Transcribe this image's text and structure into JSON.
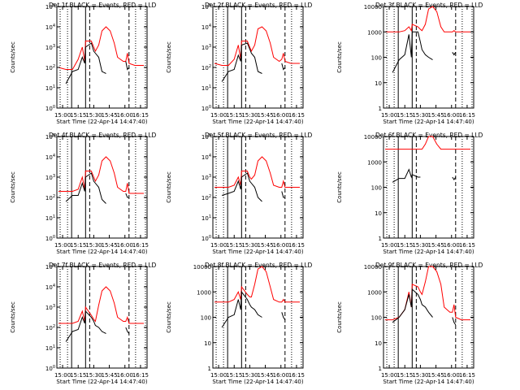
{
  "colors": {
    "black_series": "#000000",
    "red_series": "#ff0000",
    "axes": "#000000",
    "background": "#ffffff"
  },
  "chart_data": [
    {
      "type": "line",
      "title": "Det 1f BLACK = Events, RED = LLD",
      "xlabel": "Start Time (22-Apr-14 14:47:40)",
      "ylabel": "Counts/sec",
      "yscale": "log",
      "ylim_exp": [
        0,
        5
      ],
      "ytick_labels": [
        "10^0",
        "10^1",
        "10^2",
        "10^3",
        "10^4",
        "10^5"
      ],
      "x_tick_labels": [
        "15:00",
        "15:15",
        "15:30",
        "15:45",
        "16:00",
        "16:15"
      ],
      "x": [
        2,
        11,
        19,
        26,
        31,
        34,
        35,
        42,
        45,
        47,
        51,
        55,
        60,
        65,
        70,
        74,
        81,
        84,
        86,
        88,
        95,
        106
      ],
      "series": [
        {
          "name": "BLACK = Events",
          "color": "#000000",
          "log_values": [
            null,
            1.2,
            1.8,
            1.9,
            2.5,
            2.2,
            3.0,
            3.2,
            2.8,
            2.7,
            2.5,
            1.8,
            1.7,
            null,
            null,
            null,
            null,
            2.3,
            1.9,
            2.0,
            null,
            null
          ]
        },
        {
          "name": "RED = LLD",
          "color": "#ff0000",
          "log_values": [
            2.0,
            1.9,
            1.9,
            2.4,
            3.0,
            2.3,
            3.3,
            3.3,
            3.0,
            2.8,
            3.1,
            3.8,
            4.0,
            3.8,
            3.2,
            2.5,
            2.3,
            2.3,
            2.7,
            2.2,
            2.1,
            2.1
          ]
        }
      ]
    },
    {
      "type": "line",
      "title": "Det 2f BLACK = Events, RED = LLD",
      "xlabel": "Start Time (22-Apr-14 14:47:40)",
      "ylabel": "Counts/sec",
      "yscale": "log",
      "ylim_exp": [
        0,
        5
      ],
      "ytick_labels": [
        "10^0",
        "10^1",
        "10^2",
        "10^3",
        "10^4",
        "10^5"
      ],
      "x_tick_labels": [
        "15:00",
        "15:15",
        "15:30",
        "15:45",
        "16:00",
        "16:15"
      ],
      "x": [
        2,
        11,
        19,
        26,
        31,
        34,
        35,
        42,
        45,
        47,
        51,
        55,
        60,
        65,
        70,
        74,
        81,
        84,
        86,
        88,
        95,
        106
      ],
      "series": [
        {
          "name": "BLACK = Events",
          "color": "#000000",
          "log_values": [
            null,
            1.3,
            1.8,
            1.9,
            2.6,
            2.3,
            3.1,
            3.2,
            2.9,
            2.7,
            2.5,
            1.8,
            1.7,
            null,
            null,
            null,
            null,
            2.2,
            1.9,
            2.0,
            null,
            null
          ]
        },
        {
          "name": "RED = LLD",
          "color": "#ff0000",
          "log_values": [
            2.2,
            2.1,
            2.1,
            2.4,
            3.1,
            2.4,
            3.3,
            3.3,
            3.0,
            2.8,
            3.1,
            3.9,
            4.0,
            3.8,
            3.2,
            2.5,
            2.3,
            2.4,
            2.7,
            2.3,
            2.2,
            2.2
          ]
        }
      ]
    },
    {
      "type": "line",
      "title": "Det 3f BLACK = Events, RED = LLD",
      "xlabel": "Start Time (22-Apr-14 14:47:40)",
      "ylabel": "Counts/sec",
      "yscale": "log",
      "ylim_exp": [
        0,
        4
      ],
      "ytick_labels": [
        "1",
        "10",
        "100",
        "1000",
        "10000"
      ],
      "x_tick_labels": [
        "15:00",
        "15:15",
        "15:30",
        "15:45",
        "16:00",
        "16:15"
      ],
      "x": [
        2,
        11,
        19,
        26,
        31,
        34,
        35,
        42,
        45,
        47,
        51,
        55,
        60,
        65,
        70,
        74,
        81,
        84,
        86,
        88,
        95,
        106
      ],
      "series": [
        {
          "name": "BLACK = Events",
          "color": "#000000",
          "log_values": [
            null,
            1.4,
            1.9,
            2.1,
            2.9,
            2.0,
            3.0,
            3.0,
            2.6,
            2.3,
            2.1,
            2.0,
            1.9,
            null,
            null,
            null,
            null,
            2.2,
            2.1,
            2.2,
            null,
            null
          ]
        },
        {
          "name": "RED = LLD",
          "color": "#ff0000",
          "log_values": [
            3.0,
            3.0,
            3.0,
            3.05,
            3.2,
            3.05,
            3.3,
            3.2,
            3.1,
            3.05,
            3.3,
            3.9,
            4.0,
            3.8,
            3.2,
            3.0,
            3.0,
            3.0,
            3.05,
            3.0,
            3.0,
            3.0
          ]
        }
      ]
    },
    {
      "type": "line",
      "title": "Det 4f BLACK = Events, RED = LLD",
      "xlabel": "Start Time (22-Apr-14 14:47:40)",
      "ylabel": "Counts/sec",
      "yscale": "log",
      "ylim_exp": [
        0,
        5
      ],
      "ytick_labels": [
        "10^0",
        "10^1",
        "10^2",
        "10^3",
        "10^4",
        "10^5"
      ],
      "x_tick_labels": [
        "15:00",
        "15:15",
        "15:30",
        "15:45",
        "16:00",
        "16:15"
      ],
      "x": [
        2,
        11,
        19,
        26,
        31,
        34,
        35,
        42,
        45,
        47,
        51,
        55,
        60,
        65,
        70,
        74,
        81,
        84,
        86,
        88,
        95,
        106
      ],
      "series": [
        {
          "name": "BLACK = Events",
          "color": "#000000",
          "log_values": [
            null,
            1.8,
            2.1,
            2.1,
            2.7,
            2.3,
            3.0,
            3.2,
            2.8,
            2.7,
            2.5,
            1.9,
            1.7,
            null,
            null,
            null,
            null,
            2.2,
            2.0,
            2.0,
            null,
            null
          ]
        },
        {
          "name": "RED = LLD",
          "color": "#ff0000",
          "log_values": [
            2.3,
            2.3,
            2.3,
            2.4,
            3.0,
            2.4,
            3.3,
            3.3,
            3.0,
            2.8,
            3.1,
            3.8,
            4.0,
            3.8,
            3.2,
            2.5,
            2.3,
            2.3,
            2.7,
            2.2,
            2.2,
            2.2
          ]
        }
      ]
    },
    {
      "type": "line",
      "title": "Det 5f BLACK = Events, RED = LLD",
      "xlabel": "Start Time (22-Apr-14 14:47:40)",
      "ylabel": "Counts/sec",
      "yscale": "log",
      "ylim_exp": [
        0,
        5
      ],
      "ytick_labels": [
        "10^0",
        "10^1",
        "10^2",
        "10^3",
        "10^4",
        "10^5"
      ],
      "x_tick_labels": [
        "15:00",
        "15:15",
        "15:30",
        "15:45",
        "16:00",
        "16:15"
      ],
      "x": [
        2,
        11,
        19,
        26,
        31,
        34,
        35,
        42,
        45,
        47,
        51,
        55,
        60,
        65,
        70,
        74,
        81,
        84,
        86,
        88,
        95,
        106
      ],
      "series": [
        {
          "name": "BLACK = Events",
          "color": "#000000",
          "log_values": [
            null,
            2.1,
            2.2,
            2.3,
            2.8,
            2.4,
            3.0,
            3.2,
            2.8,
            2.7,
            2.5,
            2.0,
            1.8,
            null,
            null,
            null,
            null,
            2.3,
            2.0,
            2.0,
            null,
            null
          ]
        },
        {
          "name": "RED = LLD",
          "color": "#ff0000",
          "log_values": [
            2.5,
            2.5,
            2.5,
            2.6,
            3.0,
            2.6,
            3.3,
            3.3,
            3.0,
            2.9,
            3.1,
            3.8,
            4.0,
            3.8,
            3.2,
            2.6,
            2.5,
            2.5,
            2.8,
            2.5,
            2.5,
            2.5
          ]
        }
      ]
    },
    {
      "type": "line",
      "title": "Det 6f BLACK = Events, RED = LLD",
      "xlabel": "Start Time (22-Apr-14 14:47:40)",
      "ylabel": "Counts/sec",
      "yscale": "log",
      "ylim_exp": [
        0,
        4
      ],
      "ytick_labels": [
        "1",
        "10",
        "100",
        "1000",
        "10000"
      ],
      "x_tick_labels": [
        "15:00",
        "15:15",
        "15:30",
        "15:45",
        "16:00",
        "16:15"
      ],
      "x": [
        2,
        11,
        19,
        26,
        31,
        34,
        35,
        42,
        45,
        47,
        51,
        55,
        60,
        65,
        70,
        74,
        81,
        84,
        86,
        88,
        95,
        106
      ],
      "series": [
        {
          "name": "BLACK = Events",
          "color": "#000000",
          "log_values": [
            null,
            2.2,
            2.35,
            2.35,
            2.7,
            2.4,
            2.5,
            2.4,
            2.4,
            null,
            null,
            null,
            null,
            null,
            null,
            null,
            null,
            2.4,
            2.3,
            2.4,
            null,
            null
          ]
        },
        {
          "name": "RED = LLD",
          "color": "#ff0000",
          "log_values": [
            3.5,
            3.5,
            3.5,
            3.5,
            3.5,
            3.5,
            3.5,
            3.5,
            3.5,
            3.5,
            3.7,
            4.0,
            4.0,
            3.7,
            3.5,
            3.5,
            3.5,
            3.5,
            3.5,
            3.5,
            3.5,
            3.5
          ]
        }
      ]
    },
    {
      "type": "line",
      "title": "Det 7f BLACK = Events, RED = LLD",
      "xlabel": "Start Time (22-Apr-14 14:47:40)",
      "ylabel": "Counts/sec",
      "yscale": "log",
      "ylim_exp": [
        0,
        5
      ],
      "ytick_labels": [
        "10^0",
        "10^1",
        "10^2",
        "10^3",
        "10^4",
        "10^5"
      ],
      "x_tick_labels": [
        "15:00",
        "15:15",
        "15:30",
        "15:45",
        "16:00",
        "16:15"
      ],
      "x": [
        2,
        11,
        19,
        26,
        31,
        34,
        35,
        42,
        45,
        47,
        51,
        55,
        60,
        65,
        70,
        74,
        81,
        84,
        86,
        88,
        95,
        106
      ],
      "series": [
        {
          "name": "BLACK = Events",
          "color": "#000000",
          "log_values": [
            null,
            1.3,
            1.8,
            1.9,
            2.5,
            2.2,
            2.8,
            2.5,
            2.3,
            2.1,
            2.0,
            1.8,
            1.7,
            null,
            null,
            null,
            null,
            2.0,
            1.8,
            1.7,
            null,
            null
          ]
        },
        {
          "name": "RED = LLD",
          "color": "#ff0000",
          "log_values": [
            2.2,
            2.2,
            2.2,
            2.3,
            2.8,
            2.3,
            3.0,
            2.6,
            2.4,
            2.3,
            3.1,
            3.8,
            4.0,
            3.8,
            3.2,
            2.5,
            2.3,
            2.3,
            2.5,
            2.2,
            2.2,
            2.2
          ]
        }
      ]
    },
    {
      "type": "line",
      "title": "Det 8f BLACK = Events, RED = LLD",
      "xlabel": "Start Time (22-Apr-14 14:47:40)",
      "ylabel": "Counts/sec",
      "yscale": "log",
      "ylim_exp": [
        0,
        4
      ],
      "ytick_labels": [
        "1",
        "10",
        "100",
        "1000",
        "10000"
      ],
      "x_tick_labels": [
        "15:00",
        "15:15",
        "15:30",
        "15:45",
        "16:00",
        "16:15"
      ],
      "x": [
        2,
        11,
        19,
        26,
        31,
        34,
        35,
        42,
        45,
        47,
        51,
        55,
        60,
        65,
        70,
        74,
        81,
        84,
        86,
        88,
        95,
        106
      ],
      "series": [
        {
          "name": "BLACK = Events",
          "color": "#000000",
          "log_values": [
            null,
            1.6,
            2.0,
            2.1,
            2.7,
            2.3,
            3.0,
            2.7,
            2.5,
            2.4,
            2.3,
            2.1,
            2.0,
            null,
            null,
            null,
            null,
            2.2,
            2.0,
            1.9,
            null,
            null
          ]
        },
        {
          "name": "RED = LLD",
          "color": "#ff0000",
          "log_values": [
            2.6,
            2.6,
            2.6,
            2.7,
            3.0,
            2.7,
            3.2,
            2.9,
            2.8,
            2.8,
            3.3,
            3.9,
            4.0,
            3.8,
            3.2,
            2.7,
            2.6,
            2.6,
            2.7,
            2.6,
            2.6,
            2.6
          ]
        }
      ]
    },
    {
      "type": "line",
      "title": "Det 9f BLACK = Events, RED = LLD",
      "xlabel": "Start Time (22-Apr-14 14:47:40)",
      "ylabel": "Counts/sec",
      "yscale": "log",
      "ylim_exp": [
        0,
        4
      ],
      "ytick_labels": [
        "1",
        "10",
        "100",
        "1000",
        "10000"
      ],
      "x_tick_labels": [
        "15:00",
        "15:15",
        "15:30",
        "15:45",
        "16:00",
        "16:15"
      ],
      "x": [
        2,
        11,
        19,
        26,
        31,
        34,
        35,
        42,
        45,
        47,
        51,
        55,
        60,
        65,
        70,
        74,
        81,
        84,
        86,
        88,
        95,
        106
      ],
      "series": [
        {
          "name": "BLACK = Events",
          "color": "#000000",
          "log_values": [
            null,
            1.8,
            2.0,
            2.3,
            2.9,
            2.4,
            3.1,
            2.9,
            2.7,
            2.5,
            2.4,
            2.2,
            2.0,
            null,
            null,
            null,
            null,
            2.0,
            1.8,
            1.7,
            null,
            null
          ]
        },
        {
          "name": "RED = LLD",
          "color": "#ff0000",
          "log_values": [
            1.9,
            1.9,
            2.0,
            2.3,
            3.0,
            2.4,
            3.3,
            3.2,
            3.0,
            2.9,
            3.4,
            4.0,
            4.0,
            3.8,
            3.3,
            2.4,
            2.2,
            2.2,
            2.5,
            2.0,
            1.9,
            1.9
          ]
        }
      ]
    }
  ]
}
